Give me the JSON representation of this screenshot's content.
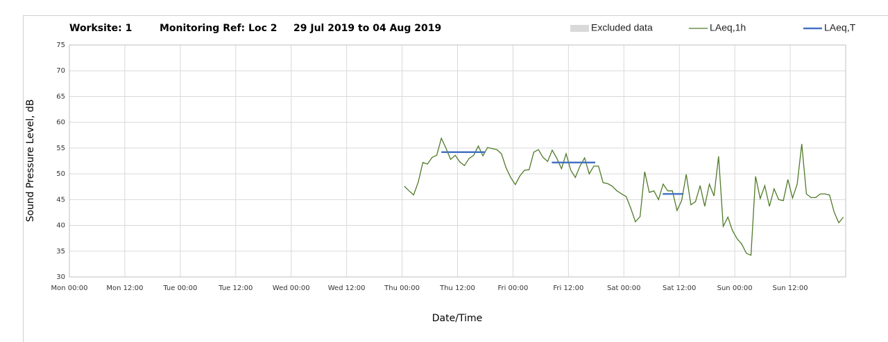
{
  "chart_data": {
    "type": "line",
    "header": [
      "Worksite: 1",
      "Monitoring Ref: Loc 2",
      "29 Jul 2019 to 04 Aug 2019"
    ],
    "xlabel": "Date/Time",
    "ylabel": "Sound Pressure Level, dB",
    "xlim": [
      0,
      168
    ],
    "ylim": [
      30,
      75
    ],
    "xticks": [
      {
        "value": 0,
        "label": "Mon 00:00"
      },
      {
        "value": 12,
        "label": "Mon 12:00"
      },
      {
        "value": 24,
        "label": "Tue 00:00"
      },
      {
        "value": 36,
        "label": "Tue 12:00"
      },
      {
        "value": 48,
        "label": "Wed 00:00"
      },
      {
        "value": 60,
        "label": "Wed 12:00"
      },
      {
        "value": 72,
        "label": "Thu 00:00"
      },
      {
        "value": 84,
        "label": "Thu 12:00"
      },
      {
        "value": 96,
        "label": "Fri 00:00"
      },
      {
        "value": 108,
        "label": "Fri 12:00"
      },
      {
        "value": 120,
        "label": "Sat 00:00"
      },
      {
        "value": 132,
        "label": "Sat 12:00"
      },
      {
        "value": 144,
        "label": "Sun 00:00"
      },
      {
        "value": 156,
        "label": "Sun 12:00"
      }
    ],
    "yticks": [
      30,
      35,
      40,
      45,
      50,
      55,
      60,
      65,
      70,
      75
    ],
    "grid": true,
    "series": [
      {
        "name": "Excluded data",
        "color": "#d9d9d9"
      },
      {
        "name": "LAeq,1h",
        "color": "#4f7a28",
        "x": [
          72.5,
          73.5,
          74.5,
          75.5,
          76.5,
          77.5,
          78.5,
          79.5,
          80.5,
          81.5,
          82.5,
          83.5,
          84.5,
          85.5,
          86.5,
          87.5,
          88.5,
          89.5,
          90.5,
          91.5,
          92.5,
          93.5,
          94.5,
          95.5,
          96.5,
          97.5,
          98.5,
          99.5,
          100.5,
          101.5,
          102.5,
          103.5,
          104.5,
          105.5,
          106.5,
          107.5,
          108.5,
          109.5,
          110.5,
          111.5,
          112.5,
          113.5,
          114.5,
          115.5,
          116.5,
          117.5,
          118.5,
          119.5,
          120.5,
          121.5,
          122.5,
          123.5,
          124.5,
          125.5,
          126.5,
          127.5,
          128.5,
          129.5,
          130.5,
          131.5,
          132.5,
          133.5,
          134.5,
          135.5,
          136.5,
          137.5,
          138.5,
          139.5,
          140.5,
          141.5,
          142.5,
          143.5,
          144.5,
          145.5,
          146.5,
          147.5,
          148.5,
          149.5,
          150.5,
          151.5,
          152.5,
          153.5,
          154.5,
          155.5,
          156.5,
          157.5,
          158.5,
          159.5,
          160.5,
          161.5,
          162.5,
          163.5,
          164.5,
          165.5,
          166.5,
          167.5
        ],
        "values": [
          47.6,
          46.7,
          45.9,
          48.4,
          52.2,
          51.9,
          53.2,
          53.6,
          56.9,
          55.0,
          52.8,
          53.6,
          52.3,
          51.6,
          53.0,
          53.6,
          55.4,
          53.5,
          55.1,
          54.9,
          54.7,
          53.9,
          51.2,
          49.3,
          47.9,
          49.6,
          50.7,
          50.8,
          54.2,
          54.7,
          53.2,
          52.4,
          54.6,
          53.0,
          51.0,
          53.9,
          50.7,
          49.3,
          51.5,
          53.1,
          50.0,
          51.5,
          51.5,
          48.3,
          48.1,
          47.6,
          46.7,
          46.1,
          45.6,
          43.3,
          40.7,
          41.7,
          50.4,
          46.4,
          46.7,
          45.0,
          48.0,
          46.7,
          46.7,
          42.9,
          44.8,
          49.9,
          44.0,
          44.6,
          47.7,
          43.7,
          48.0,
          45.7,
          53.4,
          39.8,
          41.6,
          39.0,
          37.4,
          36.4,
          34.6,
          34.2,
          49.5,
          45.2,
          47.7,
          43.7,
          47.1,
          45.0,
          44.8,
          48.9,
          45.3,
          48.0,
          55.8,
          46.1,
          45.4,
          45.4,
          46.1,
          46.1,
          45.9,
          42.6,
          40.5,
          41.6
        ]
      },
      {
        "name": "LAeq,T",
        "color": "#4472c4",
        "segments": [
          {
            "x": [
              80.5,
              90
            ],
            "values": [
              54.2,
              54.2
            ]
          },
          {
            "x": [
              104.4,
              113.8
            ],
            "values": [
              52.2,
              52.2
            ]
          },
          {
            "x": [
              128.4,
              132.9
            ],
            "values": [
              46.1,
              46.1
            ]
          }
        ]
      }
    ]
  }
}
